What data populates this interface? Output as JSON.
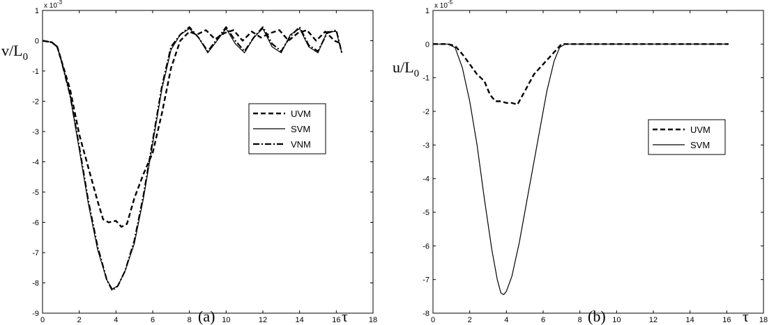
{
  "chart_data": [
    {
      "type": "line",
      "panel_label": "(a)",
      "ylabel_main": "v/L",
      "ylabel_sub": "0",
      "xlabel": "τ",
      "y_exponent_base": "x 10",
      "y_exponent_power": "-3",
      "xlim": [
        0,
        18
      ],
      "ylim": [
        -9,
        1
      ],
      "xticks": [
        0,
        2,
        4,
        6,
        8,
        10,
        12,
        14,
        16,
        18
      ],
      "xtick_labels": [
        "0",
        "2",
        "4",
        "6",
        "8",
        "10",
        "12",
        "14",
        "16",
        "18"
      ],
      "yticks": [
        1,
        0,
        -1,
        -2,
        -3,
        -4,
        -5,
        -6,
        -7,
        -8,
        -9
      ],
      "ytick_labels": [
        "1",
        "0",
        "-1",
        "-2",
        "-3",
        "-4",
        "-5",
        "-6",
        "-7",
        "-8",
        "-9"
      ],
      "legend_position": "right",
      "series": [
        {
          "name": "UVM",
          "style": "dashed",
          "x": [
            0,
            0.5,
            0.8,
            1,
            1.5,
            2,
            2.5,
            3,
            3.3,
            3.6,
            4,
            4.3,
            4.6,
            5,
            5.5,
            6,
            6.5,
            7,
            7.5,
            8,
            8.4,
            8.9,
            9.4,
            9.9,
            10.4,
            10.9,
            11.4,
            11.9,
            12.4,
            12.9,
            13.4,
            13.9,
            14.4,
            14.9,
            15.4,
            15.9,
            16.3
          ],
          "y": [
            0,
            -0.05,
            -0.2,
            -0.6,
            -1.6,
            -3.1,
            -4.2,
            -5.3,
            -5.9,
            -6.0,
            -5.95,
            -6.15,
            -6.05,
            -5.2,
            -4.4,
            -3.7,
            -2.4,
            -0.9,
            0,
            0.3,
            0.2,
            0.35,
            0.05,
            0.25,
            0.35,
            0,
            0.3,
            0.1,
            0.25,
            0.35,
            0.0,
            0.25,
            0.35,
            0.0,
            0.3,
            0.0,
            -0.1
          ]
        },
        {
          "name": "SVM",
          "style": "solid",
          "x": [
            0,
            0.5,
            0.8,
            1,
            1.5,
            2,
            2.5,
            3,
            3.5,
            3.8,
            4.1,
            4.5,
            5,
            5.5,
            6,
            6.5,
            7,
            7.5,
            8,
            8.5,
            9,
            9.5,
            10,
            10.5,
            11,
            11.5,
            12,
            12.5,
            13,
            13.5,
            14,
            14.5,
            15,
            15.5,
            16,
            16.3
          ],
          "y": [
            0,
            -0.05,
            -0.2,
            -0.6,
            -1.8,
            -3.6,
            -5.4,
            -6.9,
            -7.9,
            -8.2,
            -8.1,
            -7.6,
            -6.7,
            -5.2,
            -3.4,
            -1.6,
            -0.3,
            0.2,
            0.4,
            0.1,
            -0.4,
            0.0,
            0.4,
            -0.1,
            -0.4,
            0.1,
            0.4,
            -0.2,
            -0.4,
            0.2,
            0.4,
            -0.2,
            -0.4,
            0.3,
            0.3,
            -0.4
          ]
        },
        {
          "name": "VNM",
          "style": "dashdot",
          "x": [
            0,
            0.5,
            0.8,
            1,
            1.5,
            2,
            2.5,
            3,
            3.5,
            3.8,
            4.1,
            4.5,
            5,
            5.5,
            6,
            6.5,
            7,
            7.5,
            8,
            8.5,
            9,
            9.5,
            10,
            10.5,
            11,
            11.5,
            12,
            12.5,
            13,
            13.5,
            14,
            14.5,
            15,
            15.5,
            16,
            16.3
          ],
          "y": [
            0,
            -0.05,
            -0.2,
            -0.6,
            -1.8,
            -3.5,
            -5.3,
            -6.8,
            -7.9,
            -8.25,
            -8.1,
            -7.6,
            -6.6,
            -5.1,
            -3.3,
            -1.5,
            -0.2,
            0.2,
            0.45,
            0.1,
            -0.35,
            0.05,
            0.45,
            0.0,
            -0.35,
            0.1,
            0.45,
            -0.1,
            -0.35,
            0.15,
            0.45,
            -0.15,
            -0.35,
            0.25,
            0.35,
            -0.4
          ]
        }
      ]
    },
    {
      "type": "line",
      "panel_label": "(b)",
      "ylabel_main": "u/L",
      "ylabel_sub": "0",
      "xlabel": "τ",
      "y_exponent_base": "x 10",
      "y_exponent_power": "-5",
      "xlim": [
        0,
        18
      ],
      "ylim": [
        -8,
        1
      ],
      "xticks": [
        0,
        2,
        4,
        6,
        8,
        10,
        12,
        14,
        16,
        18
      ],
      "xtick_labels": [
        "0",
        "2",
        "4",
        "6",
        "8",
        "10",
        "12",
        "14",
        "16",
        "18"
      ],
      "yticks": [
        1,
        0,
        -1,
        -2,
        -3,
        -4,
        -5,
        -6,
        -7,
        -8
      ],
      "ytick_labels": [
        "1",
        "0",
        "-1",
        "-2",
        "-3",
        "-4",
        "-5",
        "-6",
        "-7",
        "-8"
      ],
      "legend_position": "right",
      "series": [
        {
          "name": "UVM",
          "style": "dashed",
          "x": [
            0,
            0.8,
            1.2,
            1.6,
            2,
            2.4,
            2.8,
            3.1,
            3.4,
            3.7,
            4,
            4.3,
            4.6,
            5,
            5.5,
            6,
            6.5,
            7,
            7.5,
            8,
            10,
            12,
            14,
            16.1
          ],
          "y": [
            0,
            0,
            -0.05,
            -0.3,
            -0.6,
            -0.9,
            -1.1,
            -1.5,
            -1.7,
            -1.7,
            -1.75,
            -1.75,
            -1.8,
            -1.4,
            -0.9,
            -0.6,
            -0.3,
            0,
            0,
            0,
            0,
            0,
            0,
            0
          ]
        },
        {
          "name": "SVM",
          "style": "solid",
          "x": [
            0,
            0.8,
            1.2,
            1.6,
            2,
            2.4,
            2.8,
            3.2,
            3.5,
            3.7,
            3.85,
            4.0,
            4.3,
            4.7,
            5.2,
            5.7,
            6.2,
            6.6,
            6.9,
            7.2,
            8,
            10,
            12,
            14,
            16.1
          ],
          "y": [
            0,
            0,
            -0.1,
            -0.7,
            -1.7,
            -3.0,
            -4.6,
            -6.1,
            -7.0,
            -7.4,
            -7.45,
            -7.35,
            -6.9,
            -5.9,
            -4.4,
            -2.9,
            -1.4,
            -0.5,
            -0.1,
            0,
            0,
            0,
            0,
            0,
            0
          ]
        }
      ]
    }
  ]
}
